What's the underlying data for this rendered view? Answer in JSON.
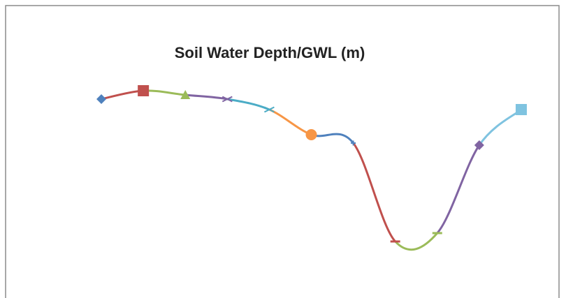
{
  "chart_data": {
    "type": "line",
    "title": "Soil Water Depth/GWL (m)",
    "categories": [
      null,
      null,
      null,
      null,
      null,
      null,
      null,
      null,
      null,
      null,
      null
    ],
    "values": [
      8.6,
      9.0,
      8.8,
      8.6,
      8.1,
      6.9,
      6.5,
      1.8,
      2.2,
      6.4,
      8.1
    ],
    "colors": [
      "#4f81bd",
      "#c0504d",
      "#9bbb59",
      "#8064a2",
      "#4bacc6",
      "#f79646",
      "#4f81bd",
      "#c0504d",
      "#9bbb59",
      "#8064a2",
      "#7fc3e0"
    ],
    "markers": [
      "diamond",
      "square",
      "triangle",
      "x",
      "x",
      "circle",
      "plus",
      "dash",
      "dash",
      "diamond",
      "square"
    ],
    "ylim": [
      0,
      10
    ],
    "smooth": true
  }
}
